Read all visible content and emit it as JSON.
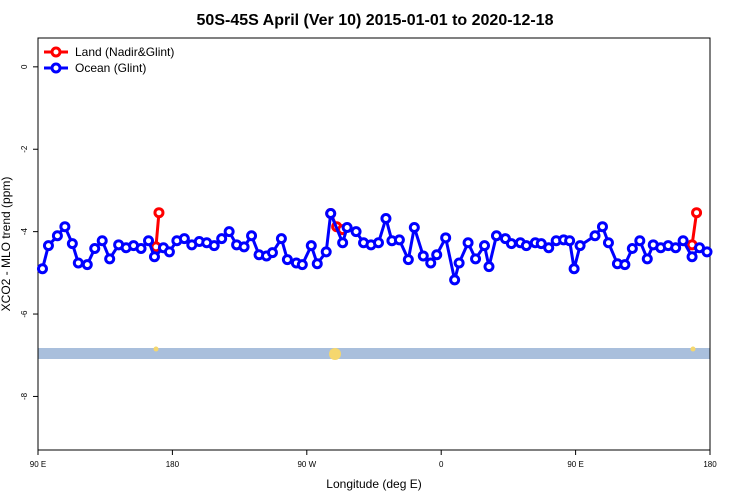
{
  "chart_data": {
    "type": "line",
    "title": "50S-45S April (Ver 10)   2015-01-01 to 2020-12-18",
    "x_label": "Longitude (deg E)",
    "y_label": "XCO2 - MLO trend (ppm)",
    "xlim": [
      90,
      540
    ],
    "xticks": [
      {
        "value": 90,
        "label": "90 E"
      },
      {
        "value": 180,
        "label": "180"
      },
      {
        "value": 270,
        "label": "90 W"
      },
      {
        "value": 360,
        "label": "0"
      },
      {
        "value": 450,
        "label": "90 E"
      },
      {
        "value": 540,
        "label": "180"
      }
    ],
    "ylim": [
      -9.3,
      0.7
    ],
    "yticks": [
      0,
      -2,
      -4,
      -6,
      -8
    ],
    "legend": "top-left",
    "series": [
      {
        "name": "Land (Nadir&Glint)",
        "color": "#ff0000",
        "x": [
          169,
          171,
          null,
          286,
          290,
          294,
          null,
          528,
          531
        ],
        "values": [
          -4.37,
          -3.54,
          null,
          -3.56,
          -3.88,
          -3.95,
          null,
          -4.32,
          -3.54
        ]
      },
      {
        "name": "Ocean (Glint)",
        "color": "#0000ff",
        "x": [
          93,
          97,
          103,
          108,
          113,
          117,
          123,
          128,
          133,
          138,
          144,
          149,
          154,
          159,
          164,
          168,
          174,
          178,
          183,
          188,
          193,
          198,
          203,
          208,
          213,
          218,
          223,
          228,
          233,
          238,
          243,
          247,
          253,
          257,
          263,
          267,
          273,
          277,
          283,
          286,
          294,
          297,
          303,
          308,
          313,
          318,
          323,
          327,
          332,
          338,
          342,
          348,
          353,
          357,
          363,
          369,
          372,
          378,
          383,
          389,
          392,
          397,
          403,
          407,
          413,
          417,
          423,
          427,
          432,
          437,
          442,
          446,
          449,
          453,
          463,
          468,
          472,
          478,
          483,
          488,
          493,
          498,
          502,
          507,
          512,
          517,
          522,
          528,
          533,
          538
        ],
        "values": [
          -4.9,
          -4.34,
          -4.1,
          -3.88,
          -4.29,
          -4.76,
          -4.8,
          -4.41,
          -4.22,
          -4.66,
          -4.32,
          -4.39,
          -4.34,
          -4.41,
          -4.22,
          -4.61,
          -4.39,
          -4.49,
          -4.22,
          -4.17,
          -4.32,
          -4.24,
          -4.27,
          -4.34,
          -4.17,
          -4.0,
          -4.32,
          -4.37,
          -4.1,
          -4.56,
          -4.59,
          -4.51,
          -4.17,
          -4.68,
          -4.76,
          -4.8,
          -4.34,
          -4.78,
          -4.49,
          -3.56,
          -4.27,
          -3.9,
          -4.0,
          -4.27,
          -4.32,
          -4.27,
          -3.68,
          -4.22,
          -4.2,
          -4.68,
          -3.9,
          -4.59,
          -4.76,
          -4.56,
          -4.15,
          -5.17,
          -4.76,
          -4.27,
          -4.66,
          -4.34,
          -4.85,
          -4.1,
          -4.17,
          -4.29,
          -4.27,
          -4.34,
          -4.27,
          -4.29,
          -4.39,
          -4.22,
          -4.2,
          -4.22,
          -4.9,
          -4.34,
          -4.1,
          -3.88,
          -4.27,
          -4.78,
          -4.8,
          -4.41,
          -4.22,
          -4.66,
          -4.32,
          -4.39,
          -4.34,
          -4.39,
          -4.22,
          -4.61,
          -4.39,
          -4.49
        ]
      }
    ]
  }
}
